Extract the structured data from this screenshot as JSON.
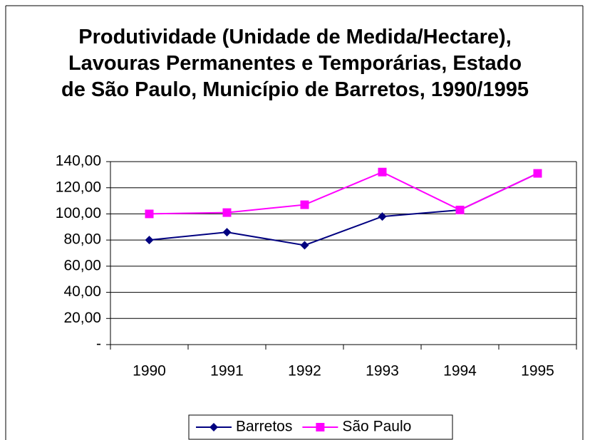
{
  "chart_data": {
    "type": "line",
    "title": "Produtividade (Unidade de Medida/Hectare), Lavouras Permanentes e Temporárias, Estado de São Paulo, Município de Barretos, 1990/1995",
    "categories": [
      "1990",
      "1991",
      "1992",
      "1993",
      "1994",
      "1995"
    ],
    "series": [
      {
        "name": "Barretos",
        "color": "#000080",
        "marker": "diamond",
        "values": [
          80,
          86,
          76,
          98,
          103,
          131
        ]
      },
      {
        "name": "São Paulo",
        "color": "#ff00ff",
        "marker": "square",
        "values": [
          100,
          101,
          107,
          132,
          103,
          131
        ]
      }
    ],
    "ylim": [
      0,
      140
    ],
    "yticks": [
      {
        "value": 0,
        "label": "-"
      },
      {
        "value": 20,
        "label": "20,00"
      },
      {
        "value": 40,
        "label": "40,00"
      },
      {
        "value": 60,
        "label": "60,00"
      },
      {
        "value": 80,
        "label": "80,00"
      },
      {
        "value": 100,
        "label": "100,00"
      },
      {
        "value": 120,
        "label": "120,00"
      },
      {
        "value": 140,
        "label": "140,00"
      }
    ],
    "grid": true,
    "legend": "bottom"
  }
}
